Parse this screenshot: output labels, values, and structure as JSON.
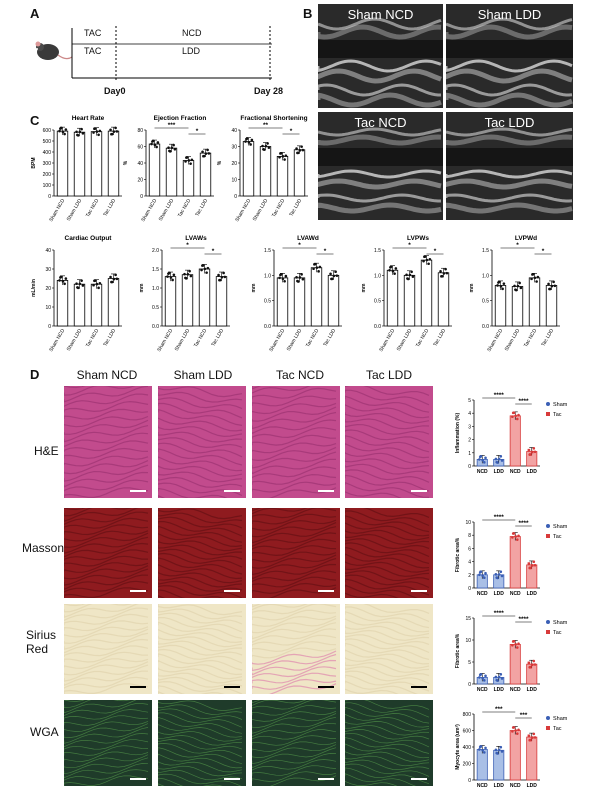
{
  "panels": {
    "a": "A",
    "b": "B",
    "c": "C",
    "d": "D"
  },
  "panel_a": {
    "rows": [
      {
        "diet_label": "TAC",
        "label2": "NCD"
      },
      {
        "diet_label": "TAC",
        "label2": "LDD"
      }
    ],
    "times": [
      "Day0",
      "Day 28"
    ]
  },
  "panel_b": {
    "titles": [
      "Sham NCD",
      "Sham LDD",
      "Tac NCD",
      "Tac LDD"
    ]
  },
  "panel_d": {
    "columns": [
      "Sham NCD",
      "Sham LDD",
      "Tac NCD",
      "Tac LDD"
    ],
    "rows": [
      "H&E",
      "Masson",
      "Sirius Red",
      "WGA"
    ],
    "stain_colors": {
      "he": "#c24b8d",
      "masson": "#8f1b1f",
      "sirius": "#efe6c6",
      "wga": "#1f3b2a"
    }
  },
  "chart_data": [
    {
      "type": "bar",
      "title": "Heart Rate",
      "ylabel": "BPM",
      "categories": [
        "Sham NCD",
        "Sham LDD",
        "Tac NCD",
        "Tac LDD"
      ],
      "values": [
        590,
        580,
        585,
        590
      ],
      "ylim": [
        0,
        600
      ],
      "yticks": [
        "0",
        "100",
        "200",
        "300",
        "400",
        "500",
        "600"
      ],
      "sig": []
    },
    {
      "type": "bar",
      "title": "Ejection Fraction",
      "ylabel": "%",
      "categories": [
        "Sham NCD",
        "Sham LDD",
        "Tac NCD",
        "Tac LDD"
      ],
      "values": [
        63,
        58,
        43,
        52
      ],
      "ylim": [
        0,
        80
      ],
      "yticks": [
        "0",
        "20",
        "40",
        "60",
        "80"
      ],
      "sig": [
        {
          "from": 0,
          "to": 2,
          "label": "***"
        },
        {
          "from": 2,
          "to": 3,
          "label": "*"
        }
      ]
    },
    {
      "type": "bar",
      "title": "Fractional Shortening",
      "ylabel": "%",
      "categories": [
        "Sham NCD",
        "Sham LDD",
        "Tac NCD",
        "Tac LDD"
      ],
      "values": [
        33,
        30,
        24,
        28
      ],
      "ylim": [
        0,
        40
      ],
      "yticks": [
        "0",
        "10",
        "20",
        "30",
        "40"
      ],
      "sig": [
        {
          "from": 0,
          "to": 2,
          "label": "**"
        },
        {
          "from": 2,
          "to": 3,
          "label": "*"
        }
      ]
    },
    {
      "type": "bar",
      "title": "Cardiac Output",
      "ylabel": "mL/min",
      "categories": [
        "Sham NCD",
        "Sham LDD",
        "Tac NCD",
        "Tac LDD"
      ],
      "values": [
        24,
        22,
        22,
        25
      ],
      "ylim": [
        0,
        40
      ],
      "yticks": [
        "0",
        "10",
        "20",
        "30",
        "40"
      ],
      "sig": []
    },
    {
      "type": "bar",
      "title": "LVAWs",
      "ylabel": "mm",
      "categories": [
        "Sham NCD",
        "Sham LDD",
        "Tac NCD",
        "Tac LDD"
      ],
      "values": [
        1.3,
        1.35,
        1.5,
        1.3
      ],
      "ylim": [
        0,
        2.0
      ],
      "yticks": [
        "0.0",
        "0.5",
        "1.0",
        "1.5",
        "2.0"
      ],
      "sig": [
        {
          "from": 0,
          "to": 2,
          "label": "*"
        },
        {
          "from": 2,
          "to": 3,
          "label": "*"
        }
      ]
    },
    {
      "type": "bar",
      "title": "LVAWd",
      "ylabel": "mm",
      "categories": [
        "Sham NCD",
        "Sham LDD",
        "Tac NCD",
        "Tac LDD"
      ],
      "values": [
        0.95,
        0.95,
        1.15,
        1.0
      ],
      "ylim": [
        0,
        1.5
      ],
      "yticks": [
        "0.0",
        "0.5",
        "1.0",
        "1.5"
      ],
      "sig": [
        {
          "from": 0,
          "to": 2,
          "label": "*"
        },
        {
          "from": 2,
          "to": 3,
          "label": "*"
        }
      ]
    },
    {
      "type": "bar",
      "title": "LVPWs",
      "ylabel": "mm",
      "categories": [
        "Sham NCD",
        "Sham LDD",
        "Tac NCD",
        "Tac LDD"
      ],
      "values": [
        1.1,
        1.0,
        1.3,
        1.05
      ],
      "ylim": [
        0,
        1.5
      ],
      "yticks": [
        "0.0",
        "0.5",
        "1.0",
        "1.5"
      ],
      "sig": [
        {
          "from": 0,
          "to": 2,
          "label": "*"
        },
        {
          "from": 2,
          "to": 3,
          "label": "*"
        }
      ]
    },
    {
      "type": "bar",
      "title": "LVPWd",
      "ylabel": "mm",
      "categories": [
        "Sham NCD",
        "Sham LDD",
        "Tac NCD",
        "Tac LDD"
      ],
      "values": [
        0.8,
        0.78,
        0.95,
        0.8
      ],
      "ylim": [
        0,
        1.5
      ],
      "yticks": [
        "0.0",
        "0.5",
        "1.0",
        "1.5"
      ],
      "sig": [
        {
          "from": 0,
          "to": 2,
          "label": "*"
        },
        {
          "from": 2,
          "to": 3,
          "label": "*"
        }
      ]
    },
    {
      "type": "bar",
      "ylabel": "Inflammation (%)",
      "categories": [
        "NCD",
        "LDD",
        "NCD",
        "LDD"
      ],
      "series_of_bar": [
        "Sham",
        "Sham",
        "Tac",
        "Tac"
      ],
      "values": [
        0.5,
        0.5,
        3.8,
        1.1
      ],
      "ylim": [
        0,
        5
      ],
      "yticks": [
        "0",
        "1",
        "2",
        "3",
        "4",
        "5"
      ],
      "legend": [
        "Sham",
        "Tac"
      ],
      "sig": [
        {
          "from": 0,
          "to": 2,
          "label": "****"
        },
        {
          "from": 2,
          "to": 3,
          "label": "****"
        }
      ]
    },
    {
      "type": "bar",
      "ylabel": "Fibrotic area%",
      "categories": [
        "NCD",
        "LDD",
        "NCD",
        "LDD"
      ],
      "series_of_bar": [
        "Sham",
        "Sham",
        "Tac",
        "Tac"
      ],
      "values": [
        2,
        2,
        7.8,
        3.5
      ],
      "ylim": [
        0,
        10
      ],
      "yticks": [
        "0",
        "2",
        "4",
        "6",
        "8",
        "10"
      ],
      "legend": [
        "Sham",
        "Tac"
      ],
      "sig": [
        {
          "from": 0,
          "to": 2,
          "label": "****"
        },
        {
          "from": 2,
          "to": 3,
          "label": "****"
        }
      ]
    },
    {
      "type": "bar",
      "ylabel": "Fibrotic area%",
      "categories": [
        "NCD",
        "LDD",
        "NCD",
        "LDD"
      ],
      "series_of_bar": [
        "Sham",
        "Sham",
        "Tac",
        "Tac"
      ],
      "values": [
        1.5,
        1.5,
        9,
        4.5
      ],
      "ylim": [
        0,
        15
      ],
      "yticks": [
        "0",
        "5",
        "10",
        "15"
      ],
      "legend": [
        "Sham",
        "Tac"
      ],
      "sig": [
        {
          "from": 0,
          "to": 2,
          "label": "****"
        },
        {
          "from": 2,
          "to": 3,
          "label": "****"
        }
      ]
    },
    {
      "type": "bar",
      "ylabel": "Myocyte area (um²)",
      "categories": [
        "NCD",
        "LDD",
        "NCD",
        "LDD"
      ],
      "series_of_bar": [
        "Sham",
        "Sham",
        "Tac",
        "Tac"
      ],
      "values": [
        370,
        360,
        600,
        520
      ],
      "ylim": [
        0,
        800
      ],
      "yticks": [
        "0",
        "200",
        "400",
        "600",
        "800"
      ],
      "legend": [
        "Sham",
        "Tac"
      ],
      "sig": [
        {
          "from": 0,
          "to": 2,
          "label": "***"
        },
        {
          "from": 2,
          "to": 3,
          "label": "***"
        }
      ]
    }
  ],
  "colors": {
    "sham": "#3b5fb5",
    "sham_fill": "#a9bfe6",
    "tac": "#d83a3a",
    "tac_fill": "#f2a3a3"
  }
}
